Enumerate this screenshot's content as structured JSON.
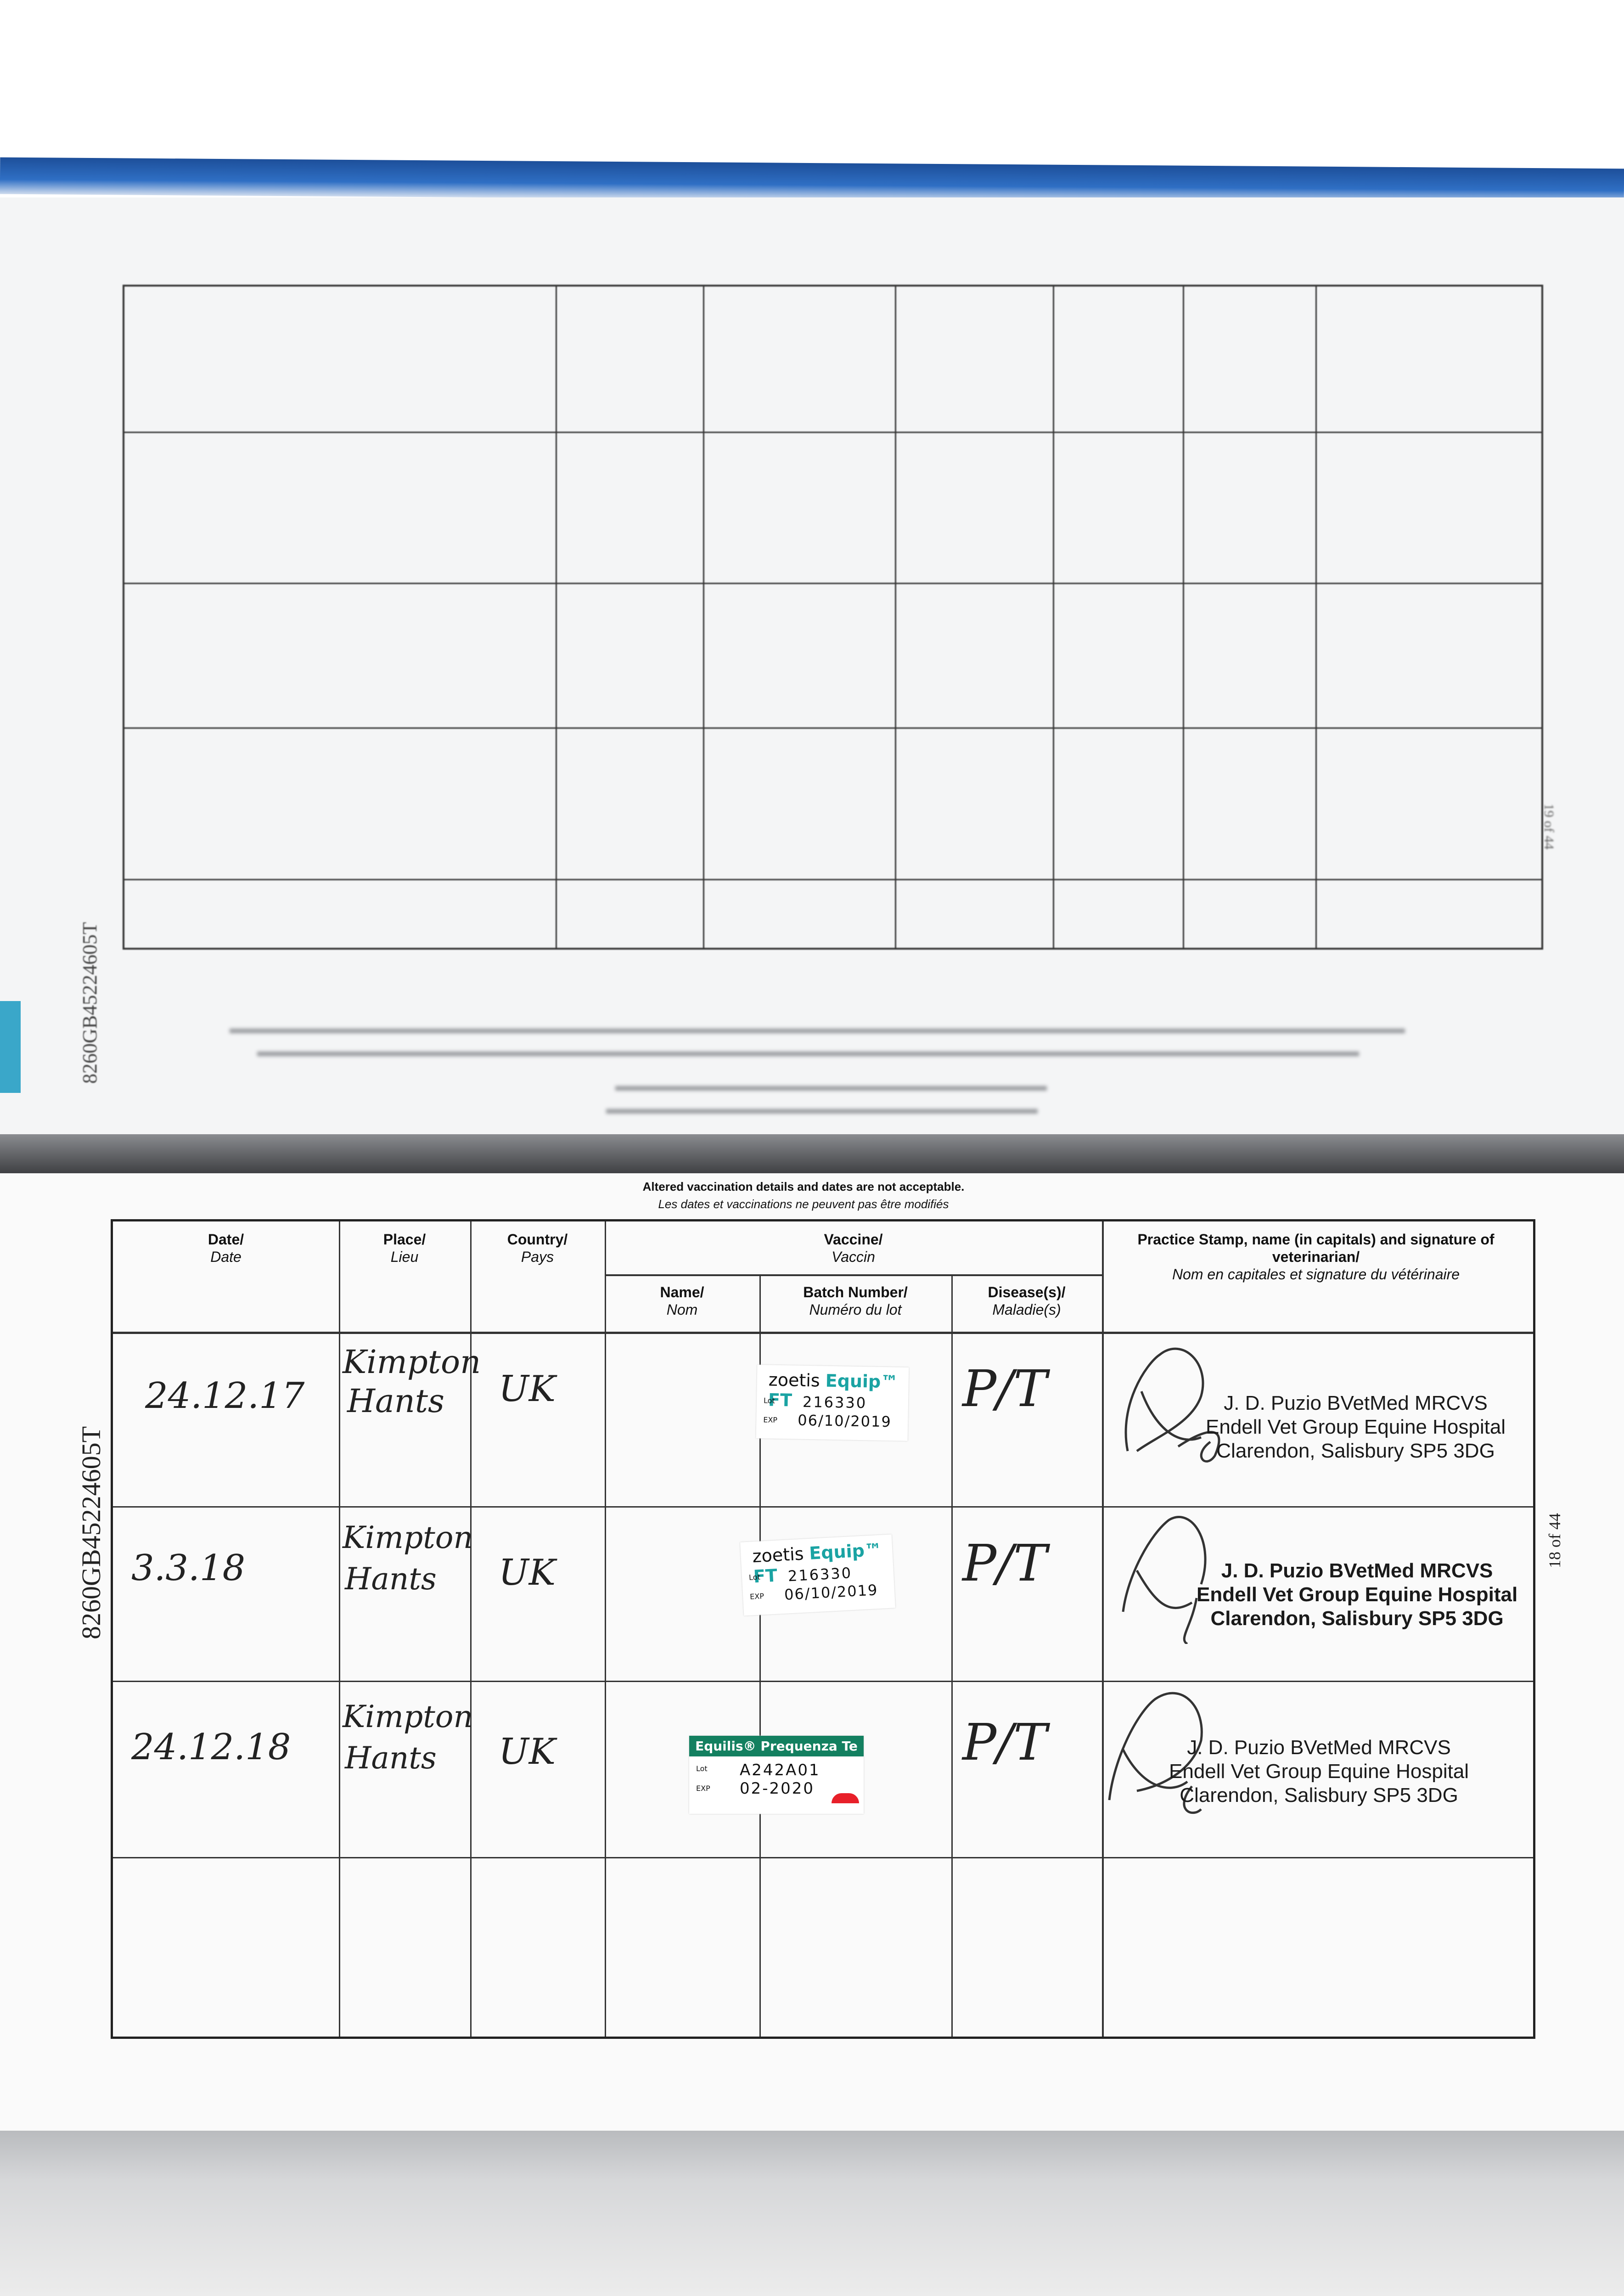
{
  "document": {
    "passport_id": "8260GB45224605T",
    "page_label": "18 of 44",
    "upper_page_label": "19 of 44",
    "notice": {
      "en": "Altered vaccination details and dates are not acceptable.",
      "fr": "Les dates et vaccinations ne peuvent pas être modifiés"
    },
    "headers": {
      "date": {
        "en": "Date/",
        "fr": "Date"
      },
      "place": {
        "en": "Place/",
        "fr": "Lieu"
      },
      "country": {
        "en": "Country/",
        "fr": "Pays"
      },
      "vaccine": {
        "en": "Vaccine/",
        "fr": "Vaccin"
      },
      "name": {
        "en": "Name/",
        "fr": "Nom"
      },
      "batch": {
        "en": "Batch Number/",
        "fr": "Numéro du lot"
      },
      "disease": {
        "en": "Disease(s)/",
        "fr": "Maladie(s)"
      },
      "stamp": {
        "en": "Practice Stamp, name (in capitals) and signature of veterinarian/",
        "fr": "Nom en capitales et signature du vétérinaire"
      }
    },
    "rows": [
      {
        "date": "24.12.17",
        "place1": "Kimpton",
        "place2": "Hants",
        "country": "UK",
        "sticker": {
          "brand": "zoetis",
          "product": "Equip™ FT",
          "lot_label": "Lot",
          "lot": "216330",
          "exp_label": "EXP",
          "exp": "06/10/2019"
        },
        "disease": "P/T",
        "stamp": {
          "line1": "J. D. Puzio  BVetMed MRCVS",
          "line2": "Endell Vet Group Equine Hospital",
          "line3": "Clarendon, Salisbury SP5 3DG"
        }
      },
      {
        "date": "3.3.18",
        "place1": "Kimpton",
        "place2": "Hants",
        "country": "UK",
        "sticker": {
          "brand": "zoetis",
          "product": "Equip™ FT",
          "lot_label": "Lot",
          "lot": "216330",
          "exp_label": "EXP",
          "exp": "06/10/2019"
        },
        "disease": "P/T",
        "stamp": {
          "line1": "J. D. Puzio  BVetMed MRCVS",
          "line2": "Endell Vet Group Equine Hospital",
          "line3": "Clarendon, Salisbury SP5 3DG"
        }
      },
      {
        "date": "24.12.18",
        "place1": "Kimpton",
        "place2": "Hants",
        "country": "UK",
        "sticker": {
          "product": "Equilis® Prequenza Te",
          "lot_label": "Lot",
          "lot": "A242A01",
          "exp_label": "EXP",
          "exp": "02-2020"
        },
        "disease": "P/T",
        "stamp": {
          "line1": "J. D. Puzio  BVetMed MRCVS",
          "line2": "Endell Vet Group Equine Hospital",
          "line3": "Clarendon, Salisbury SP5 3DG"
        }
      }
    ]
  },
  "colors": {
    "cover_blue": "#2f6fc4",
    "zoetis_teal": "#1aa3a3",
    "equilis_green": "#138060",
    "equilis_red": "#e8202a"
  }
}
